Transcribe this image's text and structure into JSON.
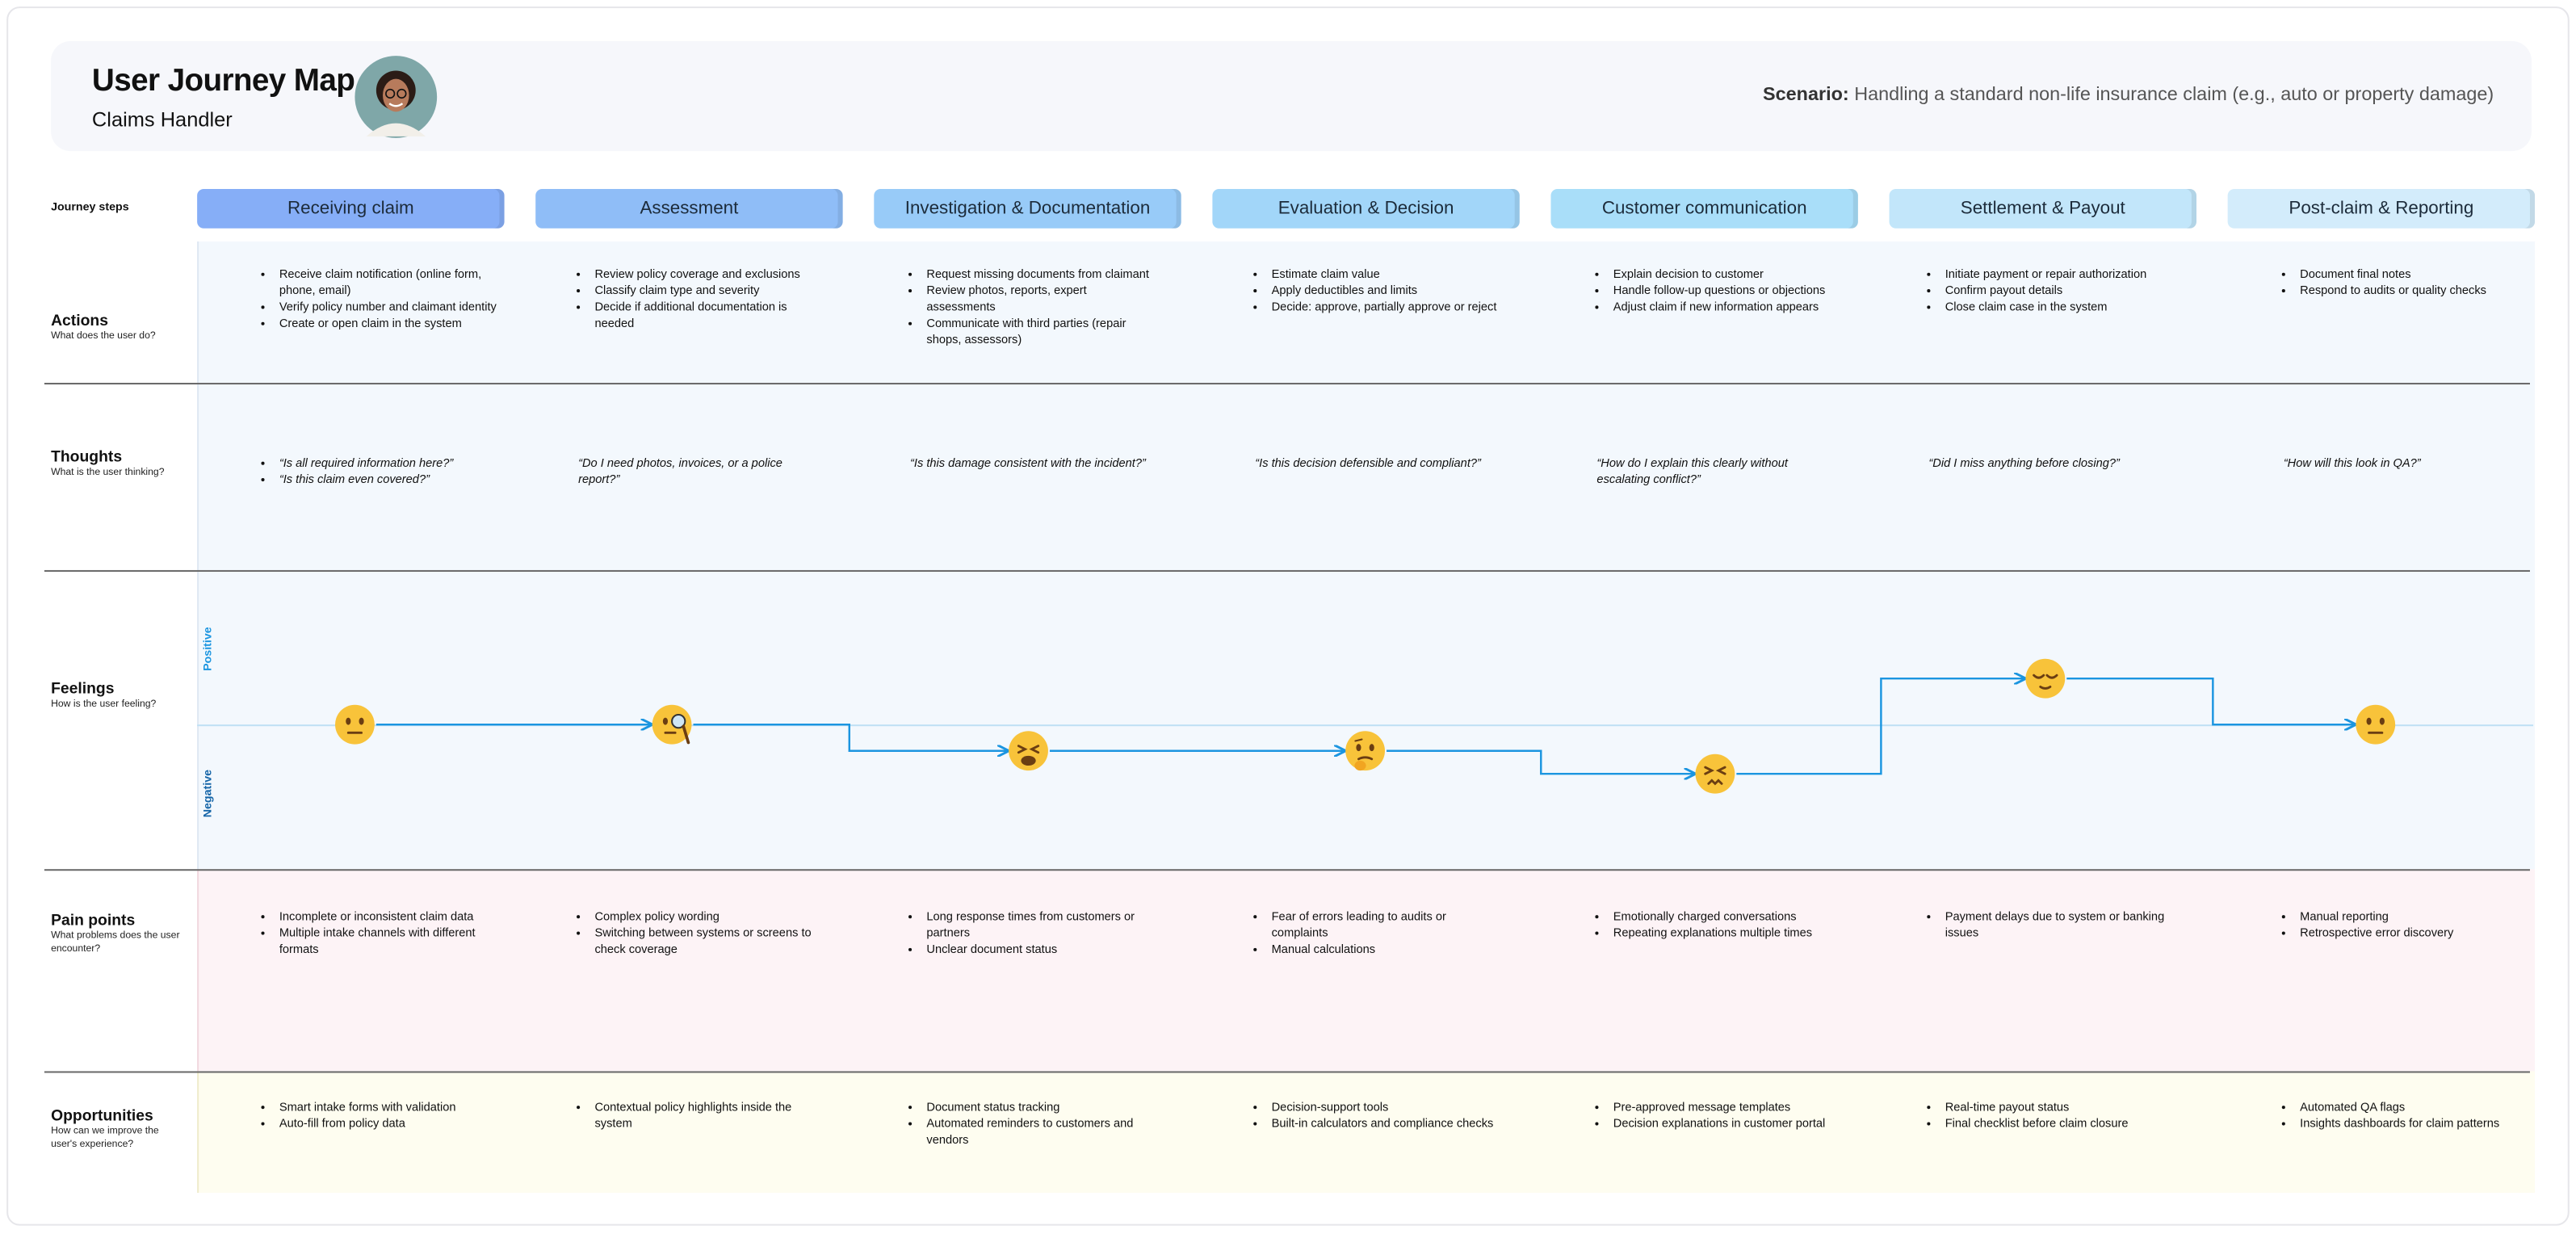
{
  "header": {
    "title": "User Journey Map",
    "subtitle": "Claims Handler",
    "scenario_label": "Scenario:",
    "scenario_text": "Handling a standard non-life insurance claim (e.g., auto or property damage)"
  },
  "steps_label": "Journey steps",
  "steps": [
    "Receiving claim",
    "Assessment",
    "Investigation & Documentation",
    "Evaluation & Decision",
    "Customer communication",
    "Settlement & Payout",
    "Post-claim & Reporting"
  ],
  "actions": {
    "label": "Actions",
    "question": "What does the user do?",
    "cells": [
      [
        "Receive claim notification (online form, phone, email)",
        "Verify policy number and claimant identity",
        "Create or open claim in the system"
      ],
      [
        "Review policy coverage and exclusions",
        "Classify claim type and severity",
        "Decide if additional documentation is needed"
      ],
      [
        "Request missing documents from claimant",
        "Review photos, reports, expert assessments",
        "Communicate with third parties (repair shops, assessors)"
      ],
      [
        "Estimate claim value",
        "Apply deductibles and limits",
        "Decide: approve, partially approve or reject"
      ],
      [
        "Explain decision to customer",
        "Handle follow-up questions or objections",
        "Adjust claim if new information appears"
      ],
      [
        "Initiate payment or repair authorization",
        "Confirm payout details",
        "Close claim case in the system"
      ],
      [
        "Document final notes",
        "Respond to audits or quality checks"
      ]
    ]
  },
  "thoughts": {
    "label": "Thoughts",
    "question": "What is the user thinking?",
    "cells": [
      [
        "“Is all required information here?”",
        "“Is this claim even covered?”"
      ],
      [
        "“Do I need photos, invoices, or a police report?”"
      ],
      [
        "“Is this damage consistent with the incident?”"
      ],
      [
        "“Is this decision defensible and compliant?”"
      ],
      [
        "“How do I explain this clearly without escalating conflict?”"
      ],
      [
        "“Did I miss anything before closing?”"
      ],
      [
        "“How will this look in QA?”"
      ]
    ]
  },
  "feelings": {
    "label": "Feelings",
    "question": "How is the user feeling?",
    "positive_label": "Positive",
    "negative_label": "Negative"
  },
  "pain_points": {
    "label": "Pain points",
    "question": "What problems does the user encounter?",
    "cells": [
      [
        "Incomplete or inconsistent claim data",
        "Multiple intake channels with different formats"
      ],
      [
        "Complex policy wording",
        "Switching between systems or screens to check coverage"
      ],
      [
        "Long response times from customers or partners",
        "Unclear document status"
      ],
      [
        "Fear of errors leading to audits or complaints",
        "Manual calculations"
      ],
      [
        "Emotionally charged conversations",
        "Repeating explanations multiple times"
      ],
      [
        "Payment delays due to system or banking issues"
      ],
      [
        "Manual reporting",
        "Retrospective error discovery"
      ]
    ]
  },
  "opportunities": {
    "label": "Opportunities",
    "question": "How can we improve the user's experience?",
    "cells": [
      [
        "Smart intake forms with validation",
        "Auto-fill from policy data"
      ],
      [
        "Contextual policy highlights inside the system"
      ],
      [
        "Document status tracking",
        "Automated reminders to customers and vendors"
      ],
      [
        "Decision-support tools",
        "Built-in calculators and compliance checks"
      ],
      [
        "Pre-approved message templates",
        "Decision explanations in customer portal"
      ],
      [
        "Real-time payout status",
        "Final checklist before claim closure"
      ],
      [
        "Automated QA flags",
        "Insights dashboards for claim patterns"
      ]
    ]
  }
}
